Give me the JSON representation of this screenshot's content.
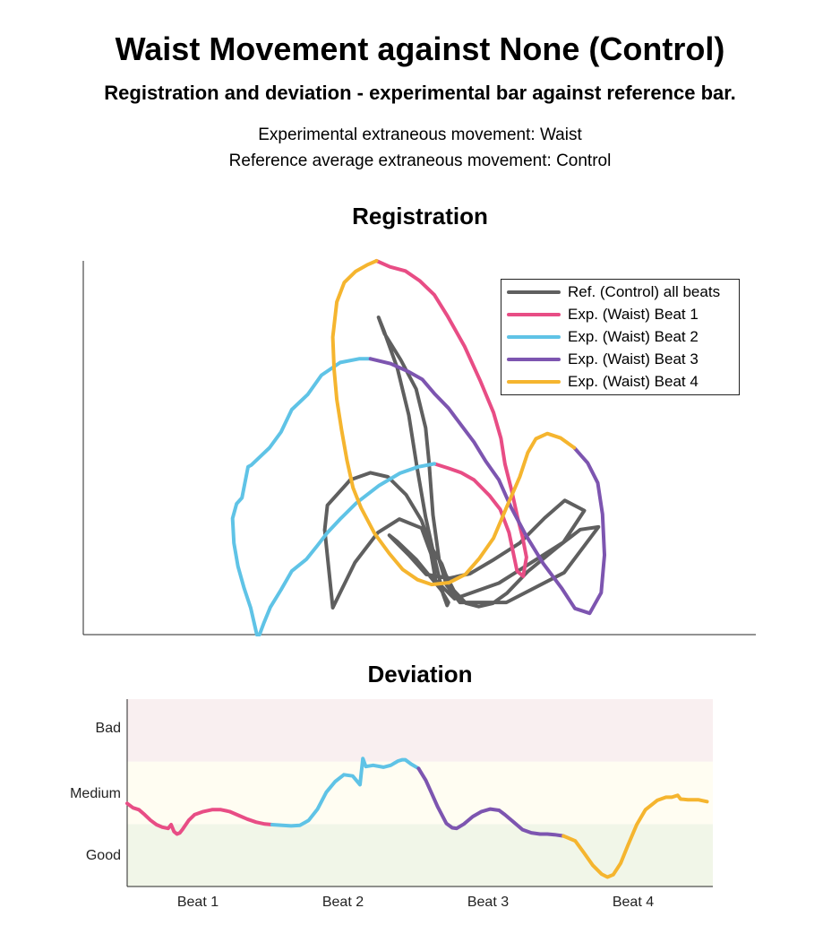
{
  "title": "Waist Movement against None (Control)",
  "subtitle": "Registration and deviation - experimental bar against reference bar.",
  "info_line1": "Experimental extraneous movement: Waist",
  "info_line2": "Reference average extraneous movement: Control",
  "colors": {
    "reference": "#5f5f5f",
    "beat1": "#e84d85",
    "beat2": "#5fc3e6",
    "beat3": "#7d55b0",
    "beat4": "#f5b52f",
    "band_bad": "#f9eff0",
    "band_medium": "#fffdf2",
    "band_good": "#f1f6e8"
  },
  "chart_data": [
    {
      "type": "line",
      "title": "Registration",
      "axes_ticks": "none",
      "legend_position": "top-right",
      "legend": [
        {
          "label": "Ref. (Control) all beats",
          "color_key": "reference"
        },
        {
          "label": "Exp. (Waist) Beat 1",
          "color_key": "beat1"
        },
        {
          "label": "Exp. (Waist) Beat 2",
          "color_key": "beat2"
        },
        {
          "label": "Exp. (Waist) Beat 3",
          "color_key": "beat3"
        },
        {
          "label": "Exp. (Waist) Beat 4",
          "color_key": "beat4"
        }
      ],
      "xlim": [
        0,
        100
      ],
      "ylim": [
        0,
        100
      ],
      "series": [
        {
          "name": "Ref. (Control) all beats",
          "color_key": "reference",
          "x": [
            35.9,
            36.3,
            39.7,
            42.7,
            45.3,
            48.0,
            50.3,
            51.7,
            53.3,
            53.9,
            55.1,
            56.9,
            58.8,
            60.9,
            63.0,
            66.1,
            70.5,
            73.9,
            76.6,
            71.5,
            62.9,
            56.0,
            54.0,
            52.9,
            52.0,
            51.4,
            50.9,
            49.5,
            47.2,
            44.8,
            43.9,
            44.7,
            46.7,
            48.4,
            49.6,
            50.9,
            52.4,
            53.5,
            54.1,
            54.3,
            53.2,
            49.5,
            46.7,
            45.5,
            46.4,
            48.5,
            51.0,
            54.5,
            57.5,
            60.8,
            64.9,
            68.6,
            71.6,
            74.5,
            71.4,
            61.8,
            55.2,
            52.4,
            51.7,
            50.3,
            47.0,
            43.8,
            40.4,
            37.1,
            35.9
          ],
          "y": [
            28.0,
            34.6,
            41.4,
            43.3,
            42.2,
            37.4,
            30.5,
            23.5,
            18.9,
            16.0,
            11.8,
            8.4,
            7.5,
            8.4,
            11.1,
            16.9,
            23.4,
            28.1,
            28.8,
            16.6,
            8.6,
            8.6,
            13.3,
            20.1,
            32.0,
            46.3,
            55.3,
            65.7,
            73.5,
            80.5,
            84.9,
            81.3,
            71.3,
            58.7,
            45.0,
            31.4,
            19.2,
            10.8,
            7.8,
            8.6,
            12.0,
            20.1,
            24.9,
            26.6,
            24.9,
            21.1,
            16.1,
            15.1,
            16.3,
            19.8,
            24.5,
            31.2,
            35.9,
            33.2,
            24.7,
            13.8,
            9.6,
            14.5,
            21.6,
            28.5,
            30.9,
            27.3,
            19.3,
            7.2,
            28.0
          ]
        },
        {
          "name": "Exp. (Waist) Beat 1",
          "color_key": "beat1",
          "x": [
            43.6,
            45.6,
            47.9,
            50.0,
            52.2,
            54.2,
            56.7,
            59.0,
            61.0,
            62.1,
            62.7,
            63.7,
            64.6,
            65.3,
            65.9,
            65.4,
            64.5,
            63.3,
            62.0,
            60.4,
            58.1,
            56.2,
            54.3,
            52.2
          ],
          "y": [
            100.0,
            98.4,
            97.3,
            94.7,
            90.9,
            85.1,
            77.1,
            68.0,
            59.4,
            52.5,
            45.6,
            38.5,
            31.2,
            26.2,
            20.7,
            15.6,
            17.0,
            27.3,
            33.5,
            37.2,
            41.4,
            43.3,
            44.5,
            45.7
          ]
        },
        {
          "name": "Exp. (Waist) Beat 2",
          "color_key": "beat2",
          "x": [
            52.2,
            49.8,
            47.1,
            44.0,
            40.6,
            38.3,
            36.3,
            34.8,
            33.2,
            31.0,
            29.4,
            27.8,
            26.8,
            26.2,
            25.8,
            24.9,
            23.9,
            23.0,
            22.4,
            22.2,
            22.8,
            23.6,
            24.5,
            25.0,
            27.7,
            29.4,
            31.0,
            33.4,
            35.4,
            38.2,
            41.0,
            42.7
          ],
          "y": [
            45.7,
            44.9,
            43.2,
            39.9,
            35.2,
            31.1,
            27.3,
            23.8,
            20.2,
            17.0,
            12.0,
            7.3,
            2.9,
            0.0,
            0.0,
            7.1,
            12.5,
            18.3,
            24.5,
            31.1,
            35.0,
            36.6,
            44.9,
            45.4,
            50.0,
            54.2,
            60.2,
            64.3,
            69.4,
            72.8,
            73.8,
            73.8
          ]
        },
        {
          "name": "Exp. (Waist) Beat 3",
          "color_key": "beat3",
          "x": [
            42.7,
            45.7,
            48.3,
            50.4,
            52.3,
            54.3,
            56.3,
            58.1,
            59.8,
            61.8,
            63.6,
            65.8,
            68.4,
            71.1,
            73.1,
            75.3,
            77.0,
            77.5,
            77.2,
            76.5,
            75.0,
            73.0
          ],
          "y": [
            73.8,
            72.5,
            70.4,
            68.3,
            64.3,
            60.6,
            55.8,
            51.5,
            46.5,
            41.4,
            34.1,
            26.6,
            19.0,
            12.5,
            7.0,
            5.7,
            11.2,
            21.3,
            32.2,
            40.6,
            45.9,
            50.0
          ]
        },
        {
          "name": "Exp. (Waist) Beat 4",
          "color_key": "beat4",
          "x": [
            73.0,
            71.0,
            69.0,
            67.3,
            66.1,
            64.9,
            62.9,
            61.0,
            58.9,
            56.8,
            54.4,
            51.8,
            49.7,
            47.5,
            45.5,
            43.3,
            41.3,
            40.1,
            39.2,
            38.4,
            37.7,
            37.3,
            37.1,
            37.7,
            38.8,
            40.5,
            42.2,
            43.6
          ],
          "y": [
            50.0,
            52.6,
            53.8,
            52.4,
            48.7,
            42.2,
            33.9,
            25.8,
            20.4,
            16.1,
            13.9,
            13.4,
            14.7,
            17.4,
            21.7,
            27.1,
            33.9,
            39.3,
            46.7,
            54.8,
            62.9,
            70.9,
            79.6,
            89.0,
            94.2,
            97.2,
            98.9,
            100.0
          ]
        }
      ]
    },
    {
      "type": "line",
      "title": "Deviation",
      "categories": [
        "Beat 1",
        "Beat 2",
        "Beat 3",
        "Beat 4"
      ],
      "y_ticks": [
        "Good",
        "Medium",
        "Bad"
      ],
      "ylim": [
        0,
        3
      ],
      "xlim": [
        0,
        4
      ],
      "bands": [
        {
          "label": "Good",
          "from": 0,
          "to": 1,
          "color_key": "band_good"
        },
        {
          "label": "Medium",
          "from": 1,
          "to": 2,
          "color_key": "band_medium"
        },
        {
          "label": "Bad",
          "from": 2,
          "to": 3,
          "color_key": "band_bad"
        }
      ],
      "series": [
        {
          "name": "Exp. (Waist) Beat 1",
          "color_key": "beat1",
          "x": [
            0.0,
            0.04,
            0.08,
            0.12,
            0.16,
            0.2,
            0.24,
            0.28,
            0.3,
            0.32,
            0.34,
            0.36,
            0.38,
            0.42,
            0.46,
            0.52,
            0.58,
            0.64,
            0.7,
            0.76,
            0.82,
            0.88,
            0.94,
            0.99
          ],
          "y": [
            1.33,
            1.26,
            1.23,
            1.15,
            1.06,
            0.99,
            0.95,
            0.93,
            0.99,
            0.88,
            0.84,
            0.86,
            0.92,
            1.06,
            1.15,
            1.2,
            1.23,
            1.23,
            1.2,
            1.14,
            1.08,
            1.03,
            1.0,
            0.99
          ]
        },
        {
          "name": "Exp. (Waist) Beat 2",
          "color_key": "beat2",
          "x": [
            0.99,
            1.06,
            1.12,
            1.18,
            1.24,
            1.3,
            1.36,
            1.42,
            1.48,
            1.54,
            1.59,
            1.61,
            1.63,
            1.68,
            1.75,
            1.8,
            1.85,
            1.88,
            1.9,
            1.94,
            1.99
          ],
          "y": [
            0.99,
            0.98,
            0.97,
            0.98,
            1.06,
            1.24,
            1.51,
            1.68,
            1.79,
            1.77,
            1.63,
            2.05,
            1.92,
            1.94,
            1.91,
            1.94,
            2.01,
            2.03,
            2.03,
            1.96,
            1.89
          ]
        },
        {
          "name": "Exp. (Waist) Beat 3",
          "color_key": "beat3",
          "x": [
            1.99,
            2.04,
            2.08,
            2.12,
            2.18,
            2.22,
            2.25,
            2.3,
            2.36,
            2.42,
            2.48,
            2.54,
            2.58,
            2.64,
            2.7,
            2.76,
            2.82,
            2.87,
            2.92,
            2.98
          ],
          "y": [
            1.89,
            1.7,
            1.49,
            1.28,
            1.01,
            0.94,
            0.93,
            1.0,
            1.12,
            1.2,
            1.24,
            1.22,
            1.15,
            1.03,
            0.91,
            0.86,
            0.84,
            0.84,
            0.83,
            0.81
          ]
        },
        {
          "name": "Exp. (Waist) Beat 4",
          "color_key": "beat4",
          "x": [
            2.98,
            3.06,
            3.12,
            3.18,
            3.24,
            3.28,
            3.32,
            3.37,
            3.42,
            3.48,
            3.54,
            3.62,
            3.68,
            3.72,
            3.76,
            3.78,
            3.83,
            3.9,
            3.96
          ],
          "y": [
            0.81,
            0.73,
            0.54,
            0.34,
            0.2,
            0.15,
            0.19,
            0.37,
            0.66,
            0.99,
            1.23,
            1.38,
            1.43,
            1.43,
            1.46,
            1.4,
            1.39,
            1.39,
            1.36
          ]
        }
      ]
    }
  ]
}
